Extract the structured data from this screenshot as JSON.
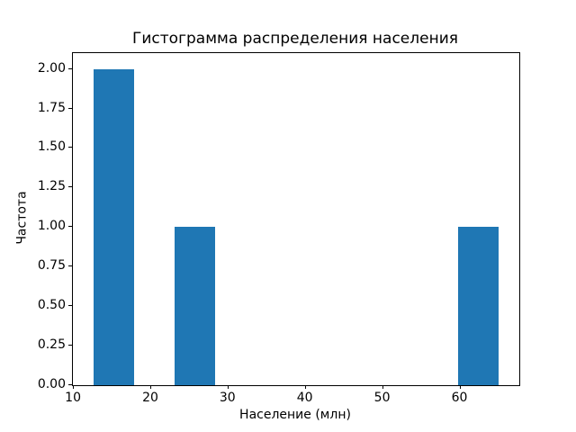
{
  "chart_data": {
    "type": "bar",
    "subtype": "histogram",
    "title": "Гистограмма распределения населения",
    "xlabel": "Население (млн)",
    "ylabel": "Частота",
    "bin_edges": [
      12.5,
      17.75,
      23.0,
      28.25,
      33.5,
      38.75,
      44.0,
      49.25,
      54.5,
      59.75,
      65.0
    ],
    "counts": [
      2,
      0,
      1,
      0,
      0,
      0,
      0,
      0,
      0,
      1
    ],
    "xlim": [
      9.875,
      67.625
    ],
    "ylim": [
      0,
      2.1
    ],
    "xticks": [
      10,
      20,
      30,
      40,
      50,
      60
    ],
    "xtick_labels": [
      "10",
      "20",
      "30",
      "40",
      "50",
      "60"
    ],
    "yticks": [
      0,
      0.25,
      0.5,
      0.75,
      1.0,
      1.25,
      1.5,
      1.75,
      2.0
    ],
    "ytick_labels": [
      "0.00",
      "0.25",
      "0.50",
      "0.75",
      "1.00",
      "1.25",
      "1.50",
      "1.75",
      "2.00"
    ],
    "bar_color": "#1f77b4",
    "spine_color": "#000000",
    "background_color": "#ffffff",
    "grid": false,
    "legend": null
  }
}
